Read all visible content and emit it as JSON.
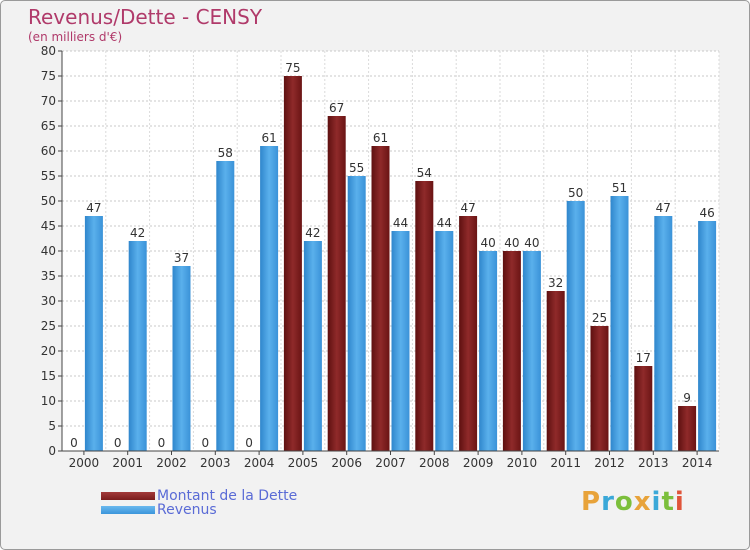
{
  "header": {
    "title": "Revenus/Dette - CENSY",
    "subtitle": "(en milliers d'€)"
  },
  "chart_data": {
    "type": "bar",
    "categories": [
      "2000",
      "2001",
      "2002",
      "2003",
      "2004",
      "2005",
      "2006",
      "2007",
      "2008",
      "2009",
      "2010",
      "2011",
      "2012",
      "2013",
      "2014"
    ],
    "series": [
      {
        "name": "Montant de la Dette",
        "color": "#7a1c1c",
        "values": [
          0,
          0,
          0,
          0,
          0,
          75,
          67,
          61,
          54,
          47,
          40,
          32,
          25,
          17,
          9
        ]
      },
      {
        "name": "Revenus",
        "color": "#3b96db",
        "values": [
          47,
          42,
          37,
          58,
          61,
          42,
          55,
          44,
          44,
          40,
          40,
          50,
          51,
          47,
          46
        ]
      }
    ],
    "ylim": [
      0,
      80
    ],
    "yticks": [
      0,
      5,
      10,
      15,
      20,
      25,
      30,
      35,
      40,
      45,
      50,
      55,
      60,
      65,
      70,
      75,
      80
    ],
    "grid": true,
    "legend_position": "bottom-left"
  },
  "legend": {
    "dette_label": "Montant de la Dette",
    "revenus_label": "Revenus",
    "dette_color": "#7a1c1c",
    "revenus_color": "#3b96db"
  },
  "logo": {
    "letters": [
      "P",
      "r",
      "o",
      "x",
      "i",
      "t",
      "i"
    ],
    "colors": [
      "#e8a33a",
      "#3aa8d8",
      "#7cbf3c",
      "#e8a33a",
      "#3aa8d8",
      "#7cbf3c",
      "#e0553a"
    ]
  }
}
